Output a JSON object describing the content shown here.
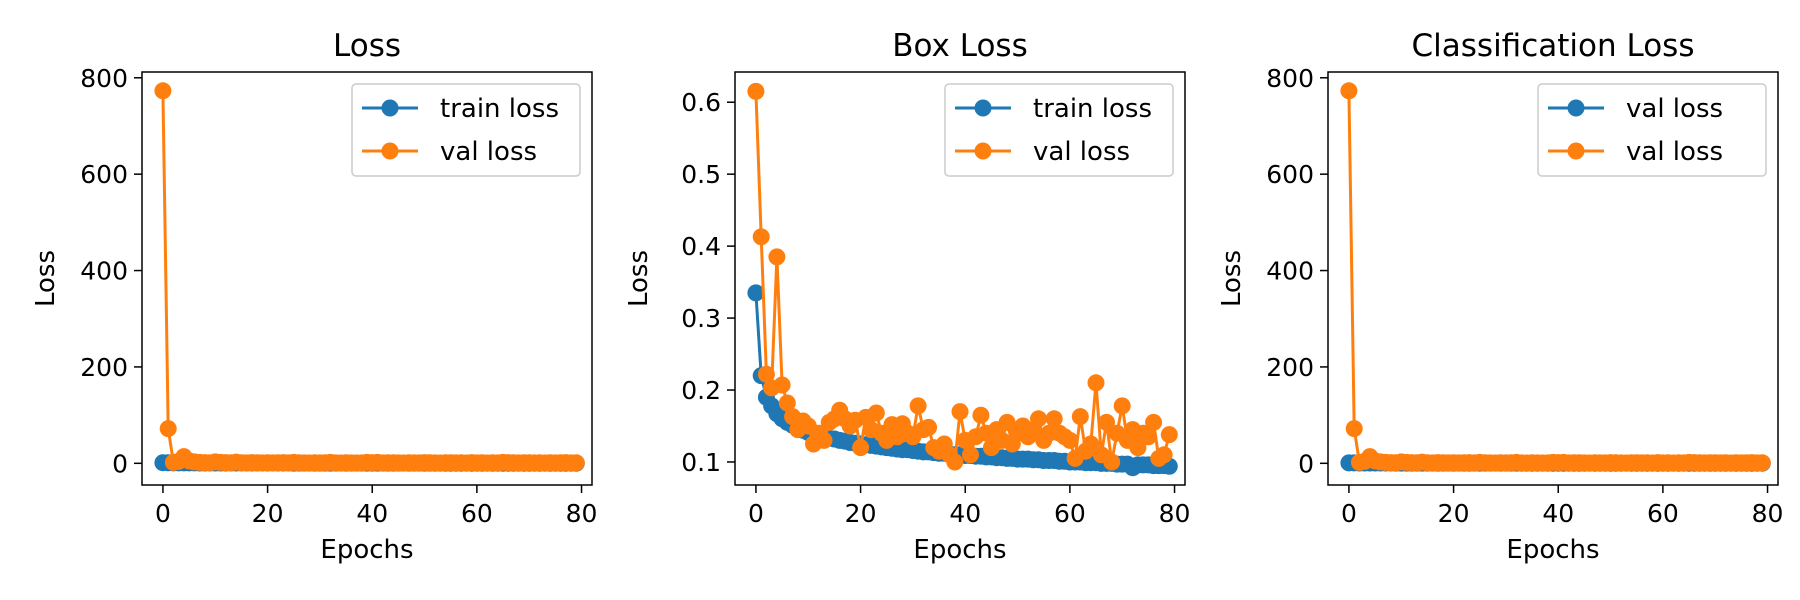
{
  "colors": {
    "train": "#1f77b4",
    "val": "#ff7f0e"
  },
  "chart_data": [
    {
      "type": "line",
      "title": "Loss",
      "xlabel": "Epochs",
      "ylabel": "Loss",
      "xlim": [
        -4,
        82
      ],
      "ylim": [
        -45,
        812
      ],
      "xticks": [
        0,
        20,
        40,
        60,
        80
      ],
      "yticks": [
        0,
        200,
        400,
        600,
        800
      ],
      "xtick_labels": [
        "0",
        "20",
        "40",
        "60",
        "80"
      ],
      "ytick_labels": [
        "0",
        "200",
        "400",
        "600",
        "800"
      ],
      "grid": false,
      "legend": "top-right",
      "series": [
        {
          "name": "train loss",
          "color": "#1f77b4",
          "x": [
            0,
            1,
            2,
            3,
            4,
            5,
            6,
            7,
            8,
            9,
            10,
            11,
            12,
            13,
            14,
            15,
            16,
            17,
            18,
            19,
            20,
            21,
            22,
            23,
            24,
            25,
            26,
            27,
            28,
            29,
            30,
            31,
            32,
            33,
            34,
            35,
            36,
            37,
            38,
            39,
            40,
            41,
            42,
            43,
            44,
            45,
            46,
            47,
            48,
            49,
            50,
            51,
            52,
            53,
            54,
            55,
            56,
            57,
            58,
            59,
            60,
            61,
            62,
            63,
            64,
            65,
            66,
            67,
            68,
            69,
            70,
            71,
            72,
            73,
            74,
            75,
            76,
            77,
            78,
            79
          ],
          "y": [
            1.2,
            1.0,
            0.9,
            0.85,
            0.8,
            0.78,
            0.76,
            0.74,
            0.72,
            0.7,
            0.69,
            0.68,
            0.67,
            0.66,
            0.65,
            0.64,
            0.63,
            0.62,
            0.61,
            0.6,
            0.59,
            0.58,
            0.57,
            0.56,
            0.55,
            0.54,
            0.53,
            0.52,
            0.51,
            0.5,
            0.5,
            0.49,
            0.48,
            0.47,
            0.46,
            0.45,
            0.45,
            0.44,
            0.43,
            0.42,
            0.42,
            0.41,
            0.4,
            0.4,
            0.39,
            0.38,
            0.38,
            0.37,
            0.36,
            0.36,
            0.35,
            0.35,
            0.34,
            0.34,
            0.33,
            0.33,
            0.32,
            0.32,
            0.31,
            0.31,
            0.3,
            0.3,
            0.29,
            0.29,
            0.28,
            0.28,
            0.27,
            0.27,
            0.26,
            0.26,
            0.25,
            0.25,
            0.25,
            0.24,
            0.24,
            0.23,
            0.23,
            0.23,
            0.22,
            0.22
          ]
        },
        {
          "name": "val loss",
          "color": "#ff7f0e",
          "x": [
            0,
            1,
            2,
            3,
            4,
            5,
            6,
            7,
            8,
            9,
            10,
            11,
            12,
            13,
            14,
            15,
            16,
            17,
            18,
            19,
            20,
            21,
            22,
            23,
            24,
            25,
            26,
            27,
            28,
            29,
            30,
            31,
            32,
            33,
            34,
            35,
            36,
            37,
            38,
            39,
            40,
            41,
            42,
            43,
            44,
            45,
            46,
            47,
            48,
            49,
            50,
            51,
            52,
            53,
            54,
            55,
            56,
            57,
            58,
            59,
            60,
            61,
            62,
            63,
            64,
            65,
            66,
            67,
            68,
            69,
            70,
            71,
            72,
            73,
            74,
            75,
            76,
            77,
            78,
            79
          ],
          "y": [
            773,
            72,
            2,
            4,
            14,
            5,
            3,
            2,
            1.5,
            1.2,
            3,
            2,
            1.5,
            1,
            2.5,
            1,
            0.8,
            1.5,
            1,
            0.8,
            1.2,
            0.8,
            1,
            1.5,
            0.8,
            2,
            1,
            0.8,
            0.7,
            1,
            0.8,
            1,
            2,
            0.8,
            0.7,
            1,
            0.8,
            0.7,
            0.8,
            2,
            1.5,
            2,
            0.8,
            1,
            1.2,
            0.8,
            0.7,
            1,
            0.9,
            0.8,
            1.5,
            1,
            0.8,
            0.7,
            1,
            1.2,
            0.8,
            1,
            0.7,
            1.5,
            0.8,
            1,
            0.7,
            1,
            0.8,
            2,
            1.5,
            1,
            0.8,
            1.2,
            1,
            0.8,
            1,
            0.7,
            1.2,
            0.8,
            1,
            1.5,
            0.8,
            1
          ]
        }
      ]
    },
    {
      "type": "line",
      "title": "Box Loss",
      "xlabel": "Epochs",
      "ylabel": "Loss",
      "xlim": [
        -4,
        82
      ],
      "ylim": [
        0.068,
        0.642
      ],
      "xticks": [
        0,
        20,
        40,
        60,
        80
      ],
      "yticks": [
        0.1,
        0.2,
        0.3,
        0.4,
        0.5,
        0.6
      ],
      "xtick_labels": [
        "0",
        "20",
        "40",
        "60",
        "80"
      ],
      "ytick_labels": [
        "0.1",
        "0.2",
        "0.3",
        "0.4",
        "0.5",
        "0.6"
      ],
      "grid": false,
      "legend": "top-right",
      "series": [
        {
          "name": "train loss",
          "color": "#1f77b4",
          "x": [
            0,
            1,
            2,
            3,
            4,
            5,
            6,
            7,
            8,
            9,
            10,
            11,
            12,
            13,
            14,
            15,
            16,
            17,
            18,
            19,
            20,
            21,
            22,
            23,
            24,
            25,
            26,
            27,
            28,
            29,
            30,
            31,
            32,
            33,
            34,
            35,
            36,
            37,
            38,
            39,
            40,
            41,
            42,
            43,
            44,
            45,
            46,
            47,
            48,
            49,
            50,
            51,
            52,
            53,
            54,
            55,
            56,
            57,
            58,
            59,
            60,
            61,
            62,
            63,
            64,
            65,
            66,
            67,
            68,
            69,
            70,
            71,
            72,
            73,
            74,
            75,
            76,
            77,
            78,
            79
          ],
          "y": [
            0.335,
            0.22,
            0.19,
            0.178,
            0.167,
            0.16,
            0.155,
            0.151,
            0.147,
            0.144,
            0.141,
            0.139,
            0.137,
            0.135,
            0.133,
            0.132,
            0.13,
            0.129,
            0.127,
            0.126,
            0.125,
            0.124,
            0.123,
            0.122,
            0.121,
            0.12,
            0.119,
            0.118,
            0.117,
            0.117,
            0.116,
            0.115,
            0.114,
            0.114,
            0.113,
            0.112,
            0.112,
            0.111,
            0.11,
            0.11,
            0.109,
            0.109,
            0.108,
            0.108,
            0.107,
            0.107,
            0.106,
            0.106,
            0.105,
            0.105,
            0.104,
            0.104,
            0.104,
            0.103,
            0.103,
            0.102,
            0.102,
            0.102,
            0.101,
            0.101,
            0.1,
            0.1,
            0.1,
            0.099,
            0.099,
            0.099,
            0.098,
            0.098,
            0.098,
            0.097,
            0.097,
            0.097,
            0.092,
            0.096,
            0.096,
            0.096,
            0.095,
            0.095,
            0.095,
            0.094
          ]
        },
        {
          "name": "val loss",
          "color": "#ff7f0e",
          "x": [
            0,
            1,
            2,
            3,
            4,
            5,
            6,
            7,
            8,
            9,
            10,
            11,
            12,
            13,
            14,
            15,
            16,
            17,
            18,
            19,
            20,
            21,
            22,
            23,
            24,
            25,
            26,
            27,
            28,
            29,
            30,
            31,
            32,
            33,
            34,
            35,
            36,
            37,
            38,
            39,
            40,
            41,
            42,
            43,
            44,
            45,
            46,
            47,
            48,
            49,
            50,
            51,
            52,
            53,
            54,
            55,
            56,
            57,
            58,
            59,
            60,
            61,
            62,
            63,
            64,
            65,
            66,
            67,
            68,
            69,
            70,
            71,
            72,
            73,
            74,
            75,
            76,
            77,
            78,
            79
          ],
          "y": [
            0.615,
            0.413,
            0.222,
            0.203,
            0.385,
            0.207,
            0.182,
            0.163,
            0.145,
            0.157,
            0.15,
            0.125,
            0.14,
            0.13,
            0.155,
            0.16,
            0.172,
            0.16,
            0.15,
            0.158,
            0.12,
            0.162,
            0.145,
            0.168,
            0.14,
            0.13,
            0.152,
            0.135,
            0.153,
            0.14,
            0.135,
            0.178,
            0.145,
            0.148,
            0.12,
            0.115,
            0.125,
            0.11,
            0.1,
            0.17,
            0.13,
            0.11,
            0.135,
            0.165,
            0.14,
            0.12,
            0.145,
            0.13,
            0.155,
            0.125,
            0.14,
            0.15,
            0.135,
            0.145,
            0.16,
            0.13,
            0.14,
            0.16,
            0.14,
            0.135,
            0.13,
            0.105,
            0.163,
            0.115,
            0.125,
            0.21,
            0.11,
            0.155,
            0.1,
            0.14,
            0.178,
            0.13,
            0.145,
            0.12,
            0.14,
            0.135,
            0.155,
            0.105,
            0.11,
            0.138
          ]
        }
      ]
    },
    {
      "type": "line",
      "title": "Classification Loss",
      "xlabel": "Epochs",
      "ylabel": "Loss",
      "xlim": [
        -4,
        82
      ],
      "ylim": [
        -45,
        812
      ],
      "xticks": [
        0,
        20,
        40,
        60,
        80
      ],
      "yticks": [
        0,
        200,
        400,
        600,
        800
      ],
      "xtick_labels": [
        "0",
        "20",
        "40",
        "60",
        "80"
      ],
      "ytick_labels": [
        "0",
        "200",
        "400",
        "600",
        "800"
      ],
      "grid": false,
      "legend": "top-right",
      "series": [
        {
          "name": "val loss",
          "color": "#1f77b4",
          "x": [
            0,
            1,
            2,
            3,
            4,
            5,
            6,
            7,
            8,
            9,
            10,
            11,
            12,
            13,
            14,
            15,
            16,
            17,
            18,
            19,
            20,
            21,
            22,
            23,
            24,
            25,
            26,
            27,
            28,
            29,
            30,
            31,
            32,
            33,
            34,
            35,
            36,
            37,
            38,
            39,
            40,
            41,
            42,
            43,
            44,
            45,
            46,
            47,
            48,
            49,
            50,
            51,
            52,
            53,
            54,
            55,
            56,
            57,
            58,
            59,
            60,
            61,
            62,
            63,
            64,
            65,
            66,
            67,
            68,
            69,
            70,
            71,
            72,
            73,
            74,
            75,
            76,
            77,
            78,
            79
          ],
          "y": [
            0.9,
            0.8,
            0.7,
            0.66,
            0.62,
            0.6,
            0.58,
            0.56,
            0.55,
            0.54,
            0.53,
            0.52,
            0.51,
            0.5,
            0.49,
            0.48,
            0.47,
            0.46,
            0.45,
            0.44,
            0.43,
            0.42,
            0.42,
            0.41,
            0.4,
            0.39,
            0.38,
            0.38,
            0.37,
            0.36,
            0.36,
            0.35,
            0.35,
            0.34,
            0.34,
            0.33,
            0.33,
            0.32,
            0.32,
            0.31,
            0.31,
            0.3,
            0.3,
            0.29,
            0.29,
            0.28,
            0.28,
            0.28,
            0.27,
            0.27,
            0.26,
            0.26,
            0.26,
            0.25,
            0.25,
            0.25,
            0.24,
            0.24,
            0.24,
            0.23,
            0.23,
            0.23,
            0.22,
            0.22,
            0.22,
            0.21,
            0.21,
            0.21,
            0.2,
            0.2,
            0.2,
            0.2,
            0.19,
            0.19,
            0.19,
            0.19,
            0.18,
            0.18,
            0.18,
            0.18
          ]
        },
        {
          "name": "val loss",
          "color": "#ff7f0e",
          "x": [
            0,
            1,
            2,
            3,
            4,
            5,
            6,
            7,
            8,
            9,
            10,
            11,
            12,
            13,
            14,
            15,
            16,
            17,
            18,
            19,
            20,
            21,
            22,
            23,
            24,
            25,
            26,
            27,
            28,
            29,
            30,
            31,
            32,
            33,
            34,
            35,
            36,
            37,
            38,
            39,
            40,
            41,
            42,
            43,
            44,
            45,
            46,
            47,
            48,
            49,
            50,
            51,
            52,
            53,
            54,
            55,
            56,
            57,
            58,
            59,
            60,
            61,
            62,
            63,
            64,
            65,
            66,
            67,
            68,
            69,
            70,
            71,
            72,
            73,
            74,
            75,
            76,
            77,
            78,
            79
          ],
          "y": [
            773,
            72,
            2,
            4,
            14,
            5,
            3,
            2,
            1.5,
            1.2,
            3,
            2,
            1.5,
            1,
            2.5,
            1,
            0.8,
            1.5,
            1,
            0.8,
            1.2,
            0.8,
            1,
            1.5,
            0.8,
            2,
            1,
            0.8,
            0.7,
            1,
            0.8,
            1,
            2,
            0.8,
            0.7,
            1,
            0.8,
            0.7,
            0.8,
            2,
            1.5,
            2,
            0.8,
            1,
            1.2,
            0.8,
            0.7,
            1,
            0.9,
            0.8,
            1.5,
            1,
            0.8,
            0.7,
            1,
            1.2,
            0.8,
            1,
            0.7,
            1.5,
            0.8,
            1,
            0.7,
            1,
            0.8,
            2,
            1.5,
            1,
            0.8,
            1.2,
            1,
            0.8,
            1,
            0.7,
            1.2,
            0.8,
            1,
            1.5,
            0.8,
            1
          ]
        }
      ]
    }
  ]
}
